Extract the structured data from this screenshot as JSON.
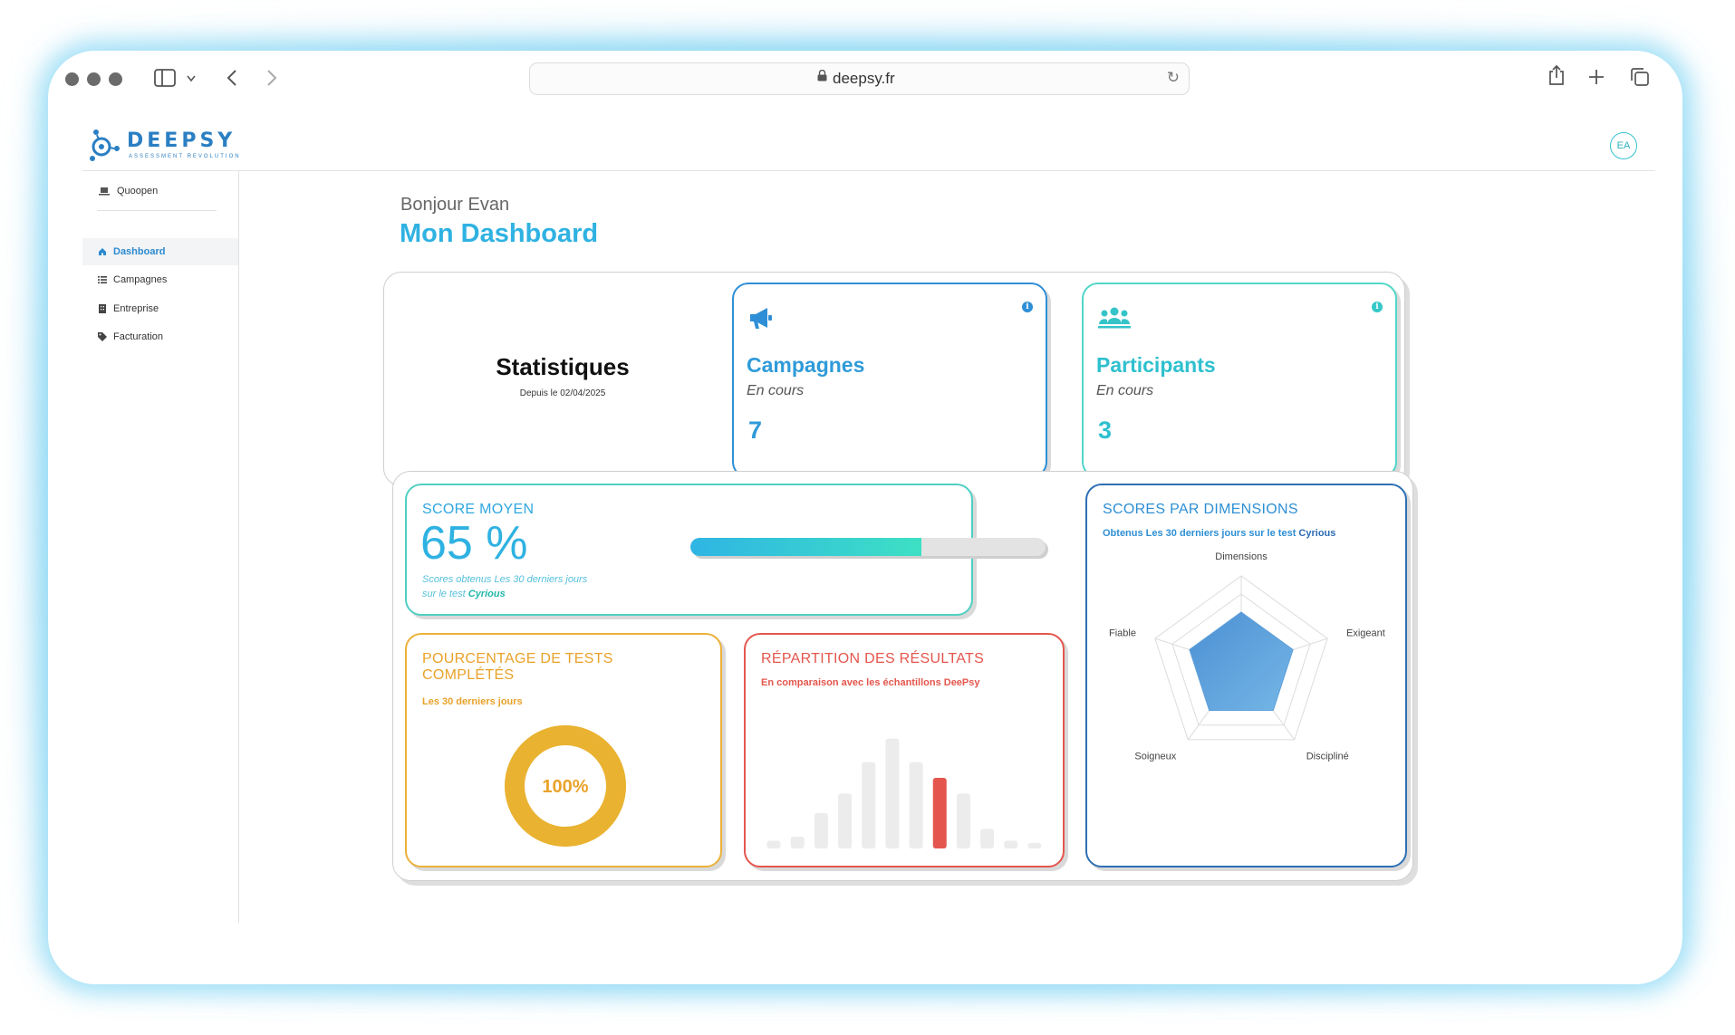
{
  "browser": {
    "url": "deepsy.fr"
  },
  "app": {
    "logo_text": "DEEPSY",
    "logo_sub": "ASSESSMENT REVOLUTION",
    "avatar": "EA"
  },
  "sidebar": {
    "org": "Quoopen",
    "items": [
      {
        "label": "Dashboard",
        "icon": "home-icon"
      },
      {
        "label": "Campagnes",
        "icon": "list-icon"
      },
      {
        "label": "Entreprise",
        "icon": "building-icon"
      },
      {
        "label": "Facturation",
        "icon": "tag-icon"
      }
    ]
  },
  "main": {
    "greeting": "Bonjour Evan",
    "title": "Mon Dashboard",
    "stats": {
      "title": "Statistiques",
      "since": "Depuis le 02/04/2025",
      "campagnes": {
        "title": "Campagnes",
        "sub": "En cours",
        "value": "7"
      },
      "participants": {
        "title": "Participants",
        "sub": "En cours",
        "value": "3"
      }
    },
    "score_moyen": {
      "title": "SCORE MOYEN",
      "value": "65 %",
      "progress": 0.65,
      "note_prefix": "Scores obtenus Les 30 derniers jours sur le test",
      "test_name": "Cyrious"
    },
    "completion": {
      "title": "POURCENTAGE DE TESTS COMPLÉTÉS",
      "sub": "Les 30 derniers jours",
      "value": "100%",
      "fraction": 1.0
    },
    "repartition": {
      "title": "RÉPARTITION DES RÉSULTATS",
      "sub": "En comparaison avec les échantillons DeePsy"
    },
    "dimensions": {
      "title": "SCORES PAR DIMENSIONS",
      "sub_prefix": "Obtenus Les 30 derniers jours sur le test",
      "test_name": "Cyrious"
    }
  },
  "colors": {
    "accent": "#2fb2e2",
    "teal": "#35c8c8",
    "orange": "#e9a229",
    "red": "#e4564d",
    "blue": "#2d6fb5"
  },
  "chart_data": [
    {
      "type": "bar",
      "title": "RÉPARTITION DES RÉSULTATS",
      "values": [
        1,
        1.5,
        4.5,
        7,
        11,
        14,
        11,
        9,
        7,
        2.5,
        1,
        0.7
      ],
      "highlight_index": 7,
      "ylim": [
        0,
        15
      ]
    },
    {
      "type": "radar",
      "title": "SCORES PAR DIMENSIONS",
      "axes": [
        "Dimensions",
        "Exigeant",
        "Discipliné",
        "Soigneux",
        "Fiable"
      ],
      "values": [
        3,
        3,
        3,
        3,
        3
      ],
      "rmax": 5
    }
  ]
}
